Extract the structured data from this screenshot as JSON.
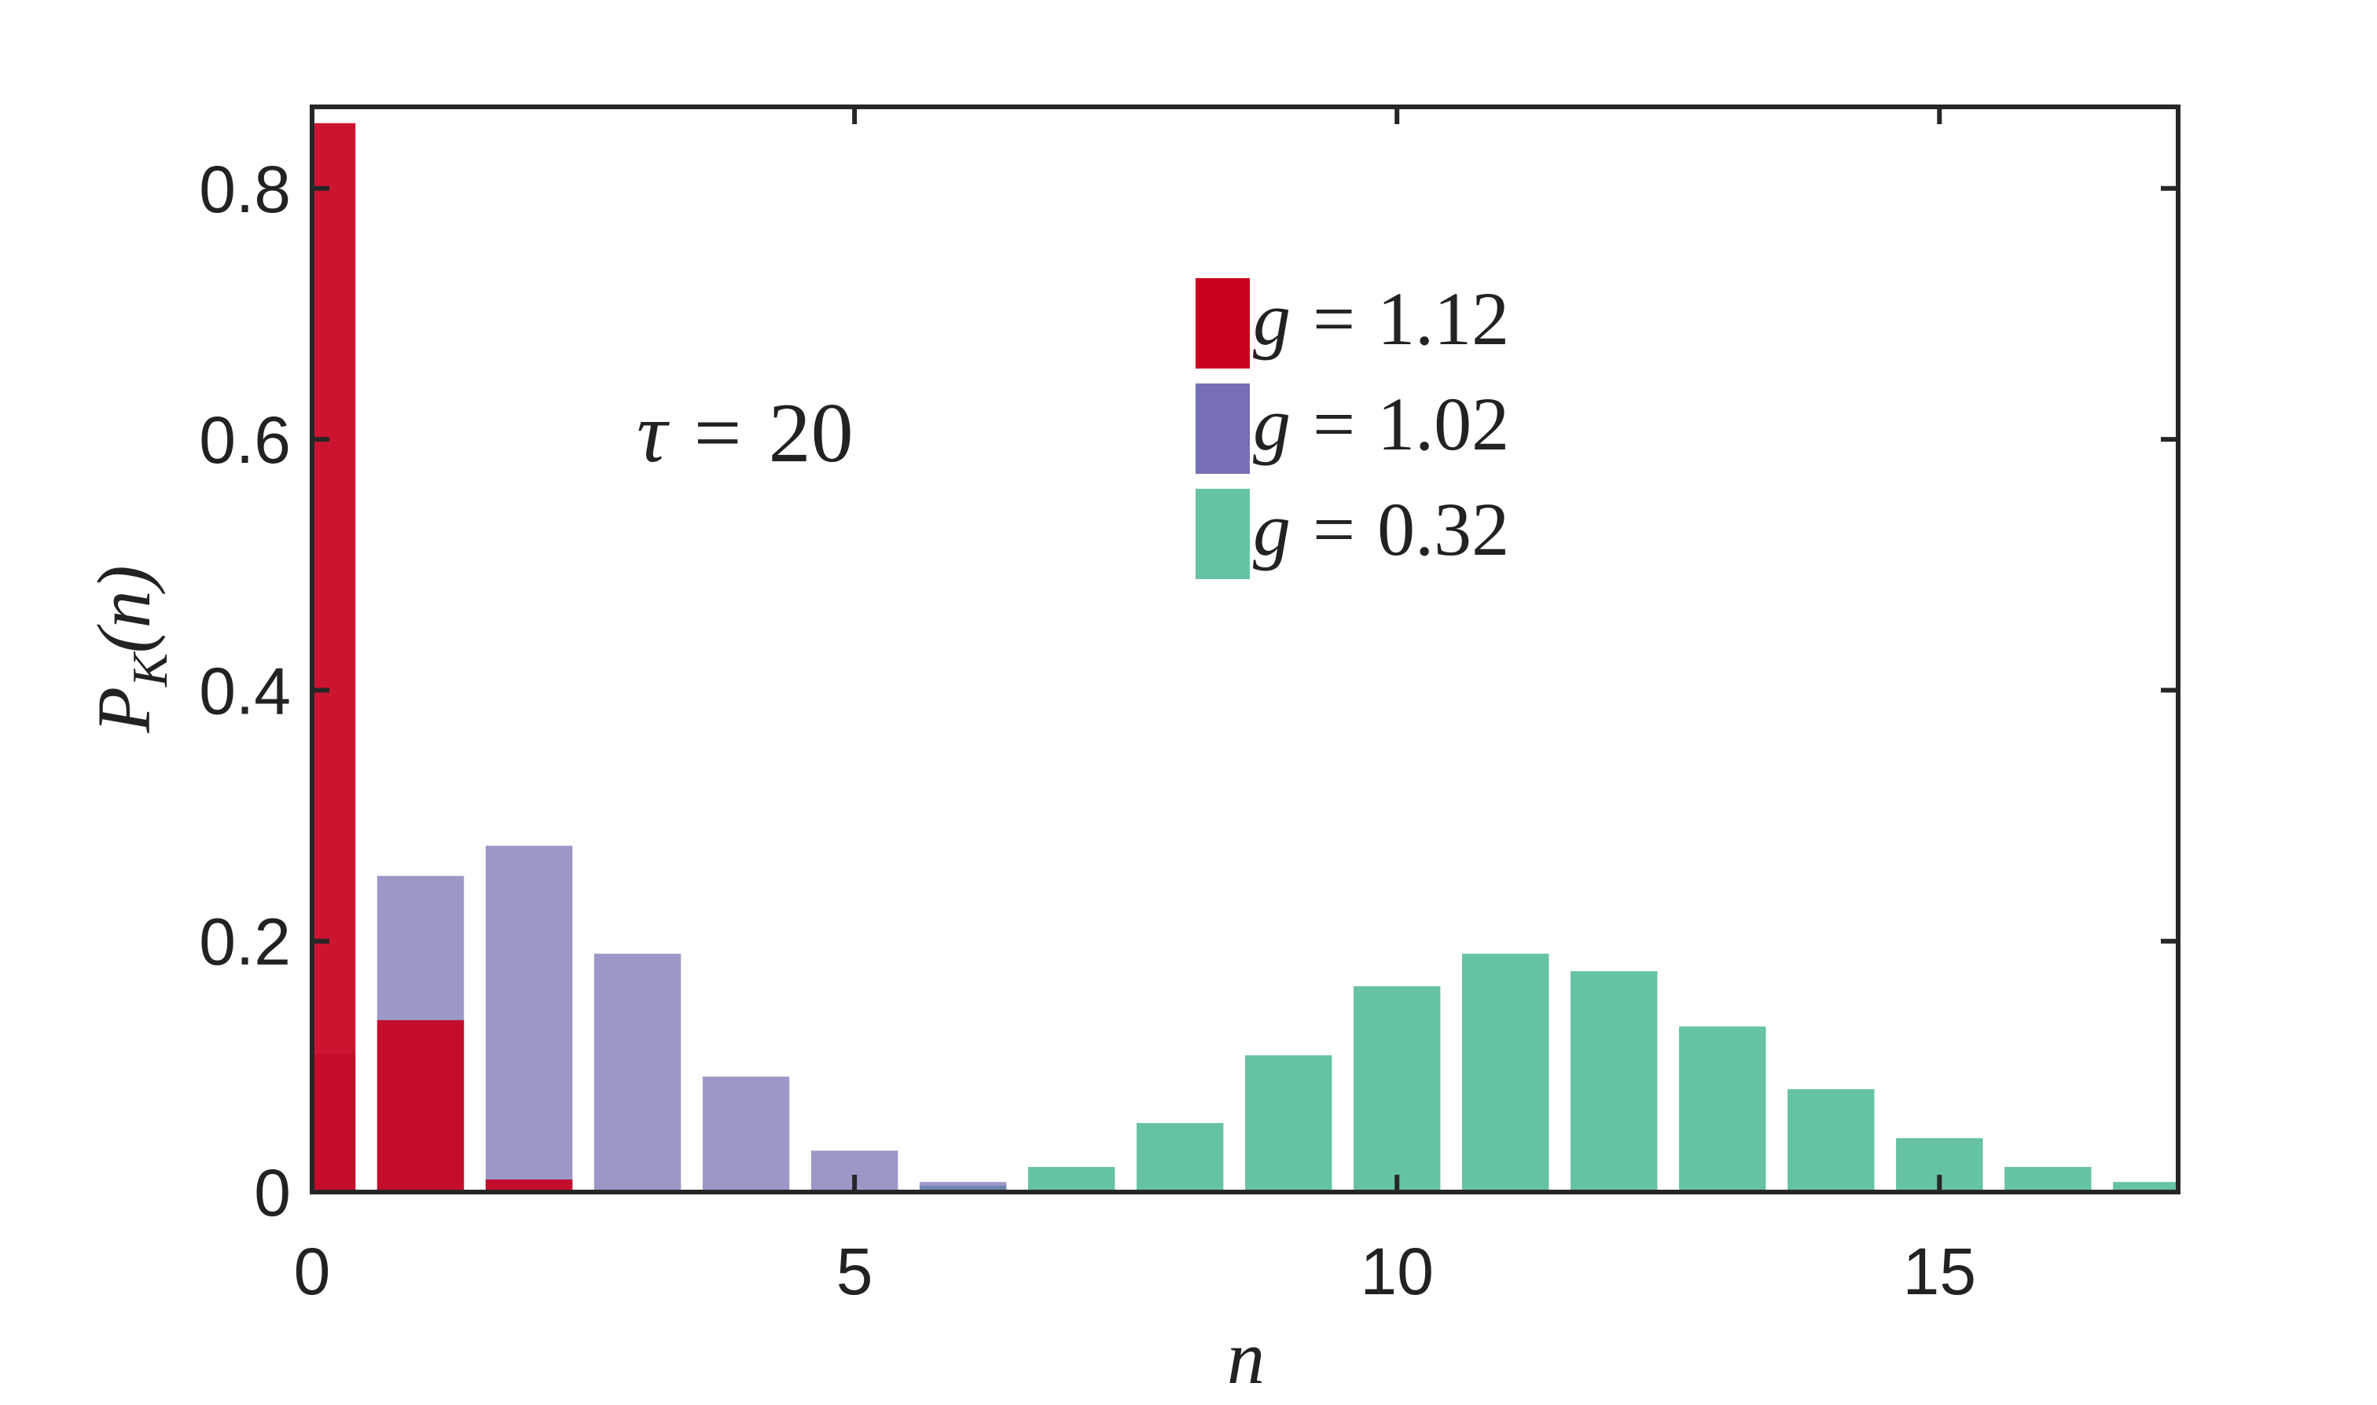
{
  "chart_data": {
    "type": "bar",
    "title": "",
    "xlabel": "n",
    "ylabel": {
      "main": "P",
      "subscript": "K",
      "arg": "(n)"
    },
    "xlim": [
      0,
      17.2
    ],
    "ylim": [
      0,
      0.865
    ],
    "xticks": [
      0,
      5,
      10,
      15
    ],
    "xtick_labels": [
      "0",
      "5",
      "10",
      "15"
    ],
    "yticks": [
      0,
      0.2,
      0.4,
      0.6,
      0.8
    ],
    "ytick_labels": [
      "0",
      "0.2",
      "0.4",
      "0.6",
      "0.8"
    ],
    "grid": false,
    "legend_position": "upper-center",
    "annotation": {
      "symbol": "τ",
      "op": "=",
      "value": "20"
    },
    "categories": [
      0,
      1,
      2,
      3,
      4,
      5,
      6,
      7,
      8,
      9,
      10,
      11,
      12,
      13,
      14,
      15,
      16,
      17
    ],
    "series": [
      {
        "name": "g = 1.12",
        "legend": {
          "var": "g",
          "op": "=",
          "value": "1.12"
        },
        "color": "#c8001e",
        "opacity": 0.92,
        "values": [
          0.852,
          0.137,
          0.01,
          0.0,
          0.0,
          0.0,
          0.0,
          0.0,
          0.0,
          0.0,
          0.0,
          0.0,
          0.0,
          0.0,
          0.0,
          0.0,
          0.0,
          0.0
        ]
      },
      {
        "name": "g = 1.02",
        "legend": {
          "var": "g",
          "op": "=",
          "value": "1.02"
        },
        "color": "#7570b3",
        "opacity": 0.72,
        "values": [
          0.11,
          0.252,
          0.276,
          0.19,
          0.092,
          0.033,
          0.008,
          0.0,
          0.0,
          0.0,
          0.0,
          0.0,
          0.0,
          0.0,
          0.0,
          0.0,
          0.0,
          0.0
        ]
      },
      {
        "name": "g = 0.32",
        "legend": {
          "var": "g",
          "op": "=",
          "value": "0.32"
        },
        "color": "#66c2a5",
        "opacity": 1.0,
        "values": [
          0.0,
          0.0,
          0.0,
          0.0,
          0.0,
          0.0,
          0.005,
          0.02,
          0.055,
          0.109,
          0.164,
          0.19,
          0.176,
          0.132,
          0.082,
          0.043,
          0.02,
          0.008
        ]
      }
    ]
  }
}
